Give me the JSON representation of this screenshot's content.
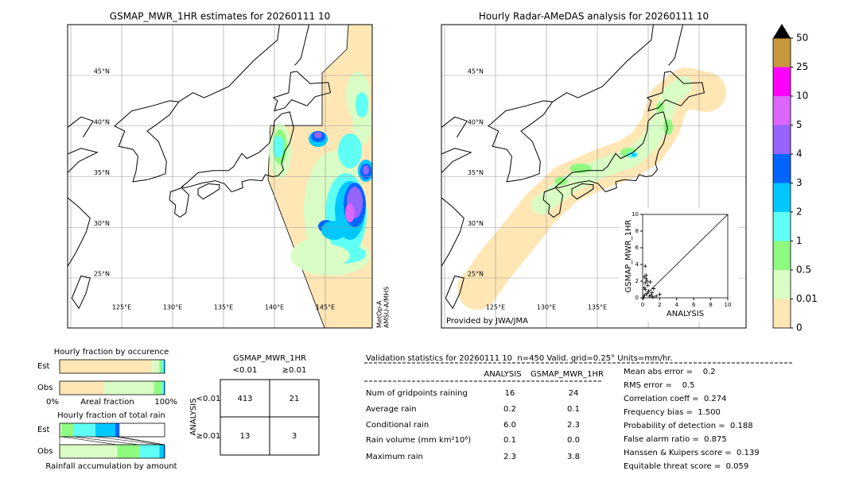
{
  "maps": [
    {
      "title": "GSMAP_MWR_1HR estimates for 20260111 10",
      "lat_labels": [
        "45°N",
        "40°N",
        "35°N",
        "30°N",
        "25°N"
      ],
      "lon_labels": [
        "125°E",
        "130°E",
        "135°E",
        "140°E",
        "145°E"
      ],
      "note": [
        "MetOp-A",
        "AMSU-A/MHS"
      ]
    },
    {
      "title": "Hourly Radar-AMeDAS analysis for 20260111 10",
      "lat_labels": [
        "45°N",
        "40°N",
        "35°N",
        "30°N",
        "25°N"
      ],
      "lon_labels": [
        "125°E",
        "130°E",
        "135°E"
      ],
      "credit": "Provided by JWA/JMA"
    }
  ],
  "colorbar": {
    "levels": [
      0,
      0.01,
      0.5,
      1,
      2,
      3,
      4,
      5,
      10,
      25,
      50
    ],
    "colors": [
      "#fee6b5",
      "#d9fdc4",
      "#8efa80",
      "#5ffff5",
      "#00c8ff",
      "#0064ff",
      "#9664ff",
      "#dd66ff",
      "#ff00ff",
      "#c8963c"
    ]
  },
  "scatter": {
    "xlabel": "ANALYSIS",
    "ylabel": "GSMAP_MWR_1HR",
    "xlim": [
      0,
      10
    ],
    "ylim": [
      0,
      10
    ],
    "xticks": [
      0,
      2,
      4,
      6,
      8,
      10
    ],
    "yticks": [
      0,
      2,
      4,
      6,
      8,
      10
    ],
    "x": [
      0.1,
      0.2,
      0.3,
      0.3,
      0.2,
      0.4,
      0.5,
      0.6,
      0.7,
      0.5,
      1.0,
      1.2,
      0.8,
      0.3,
      0.9,
      1.1,
      1.6,
      2.0,
      0.2,
      0.4,
      1.3
    ],
    "y": [
      0.0,
      0.3,
      1.0,
      1.8,
      2.5,
      2.3,
      2.0,
      1.5,
      0.8,
      0.5,
      0.3,
      0.1,
      0.2,
      3.8,
      1.9,
      0.6,
      0.2,
      0.4,
      1.2,
      2.7,
      1.1
    ]
  },
  "occurrence": {
    "title": "Hourly fraction by occurence",
    "rows": [
      {
        "label": "Est",
        "values": [
          88,
          7,
          2,
          2,
          1
        ]
      },
      {
        "label": "Obs",
        "values": [
          42,
          48,
          7,
          2,
          1
        ]
      }
    ],
    "colors": [
      "#fee6b5",
      "#d9fdc4",
      "#8efa80",
      "#5ffff5",
      "#00c8ff"
    ],
    "axis_labels": [
      "0%",
      "Areal fraction",
      "100%"
    ]
  },
  "totals": {
    "title": "Hourly fraction of total rain",
    "rows": [
      {
        "label": "Est",
        "values": [
          2,
          11,
          21,
          19,
          4
        ]
      },
      {
        "label": "Obs",
        "values": [
          55,
          21,
          19,
          4,
          1
        ]
      }
    ],
    "colors": [
      "#d9fdc4",
      "#8efa80",
      "#5ffff5",
      "#00c8ff",
      "#0064ff"
    ],
    "caption": "Rainfall accumulation by amount"
  },
  "contingency": {
    "title": "GSMAP_MWR_1HR",
    "col_labels": [
      "<0.01",
      "≥0.01"
    ],
    "row_title": "ANALYSIS",
    "row_labels": [
      "<0.01",
      "≥0.01"
    ],
    "cells": [
      [
        "413",
        "21"
      ],
      [
        "13",
        "3"
      ]
    ]
  },
  "stats": {
    "header": "Validation statistics for 20260111 10  n=450 Valid. grid=0.25° Units=mm/hr.",
    "columns": [
      "ANALYSIS",
      "GSMAP_MWR_1HR"
    ],
    "rows": [
      {
        "label": "Num of gridpoints raining",
        "analysis": "16",
        "gsmap": "24"
      },
      {
        "label": "Average rain",
        "analysis": "0.2",
        "gsmap": "0.1"
      },
      {
        "label": "Conditional rain",
        "analysis": "6.0",
        "gsmap": "2.3"
      },
      {
        "label": "Rain volume (mm km²10⁶)",
        "analysis": "0.1",
        "gsmap": "0.0"
      },
      {
        "label": "Maximum rain",
        "analysis": "2.3",
        "gsmap": "3.8"
      }
    ],
    "scores": [
      "Mean abs error =    0.2",
      "RMS error =    0.5",
      "Correlation coeff =  0.274",
      "Frequency bias =  1.500",
      "Probability of detection =  0.188",
      "False alarm ratio =  0.875",
      "Hanssen & Kuipers score =  0.139",
      "Equitable threat score =  0.059"
    ]
  }
}
